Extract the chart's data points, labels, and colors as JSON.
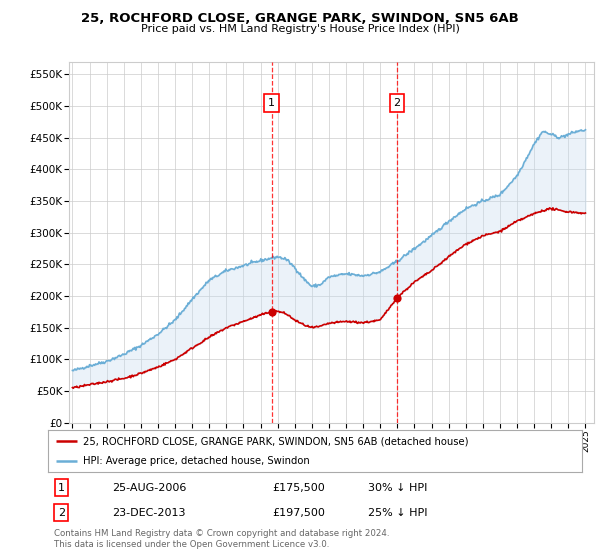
{
  "title1": "25, ROCHFORD CLOSE, GRANGE PARK, SWINDON, SN5 6AB",
  "title2": "Price paid vs. HM Land Registry's House Price Index (HPI)",
  "ylabel_ticks": [
    "£0",
    "£50K",
    "£100K",
    "£150K",
    "£200K",
    "£250K",
    "£300K",
    "£350K",
    "£400K",
    "£450K",
    "£500K",
    "£550K"
  ],
  "ylim": [
    0,
    570000
  ],
  "ytick_values": [
    0,
    50000,
    100000,
    150000,
    200000,
    250000,
    300000,
    350000,
    400000,
    450000,
    500000,
    550000
  ],
  "hpi_color": "#6baed6",
  "hpi_fill_color": "#c6dcf0",
  "price_color": "#cc0000",
  "marker1_date": 2006.65,
  "marker1_price": 175500,
  "marker2_date": 2013.98,
  "marker2_price": 197500,
  "legend_line1": "25, ROCHFORD CLOSE, GRANGE PARK, SWINDON, SN5 6AB (detached house)",
  "legend_line2": "HPI: Average price, detached house, Swindon",
  "table_row1": [
    "1",
    "25-AUG-2006",
    "£175,500",
    "30% ↓ HPI"
  ],
  "table_row2": [
    "2",
    "23-DEC-2013",
    "£197,500",
    "25% ↓ HPI"
  ],
  "footnote": "Contains HM Land Registry data © Crown copyright and database right 2024.\nThis data is licensed under the Open Government Licence v3.0.",
  "xlim_start": 1994.8,
  "xlim_end": 2025.5,
  "figsize": [
    6.0,
    5.6
  ],
  "dpi": 100
}
